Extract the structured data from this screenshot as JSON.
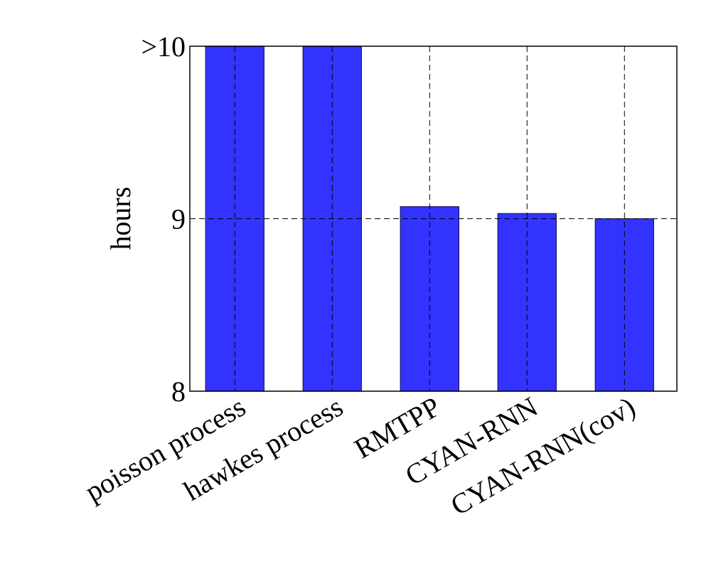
{
  "chart_data": {
    "type": "bar",
    "title": "",
    "xlabel": "",
    "ylabel": "hours",
    "ylim": [
      8,
      10
    ],
    "yticks": [
      {
        "value": 8,
        "label": "8"
      },
      {
        "value": 9,
        "label": "9"
      },
      {
        "value": 10,
        "label": ">10"
      }
    ],
    "categories": [
      "poisson process",
      "hawkes process",
      "RMTPP",
      "CYAN-RNN",
      "CYAN-RNN(cov)"
    ],
    "values": [
      10,
      10,
      9.07,
      9.03,
      9.0
    ],
    "grid": true,
    "bar_color": "#3333ff"
  }
}
